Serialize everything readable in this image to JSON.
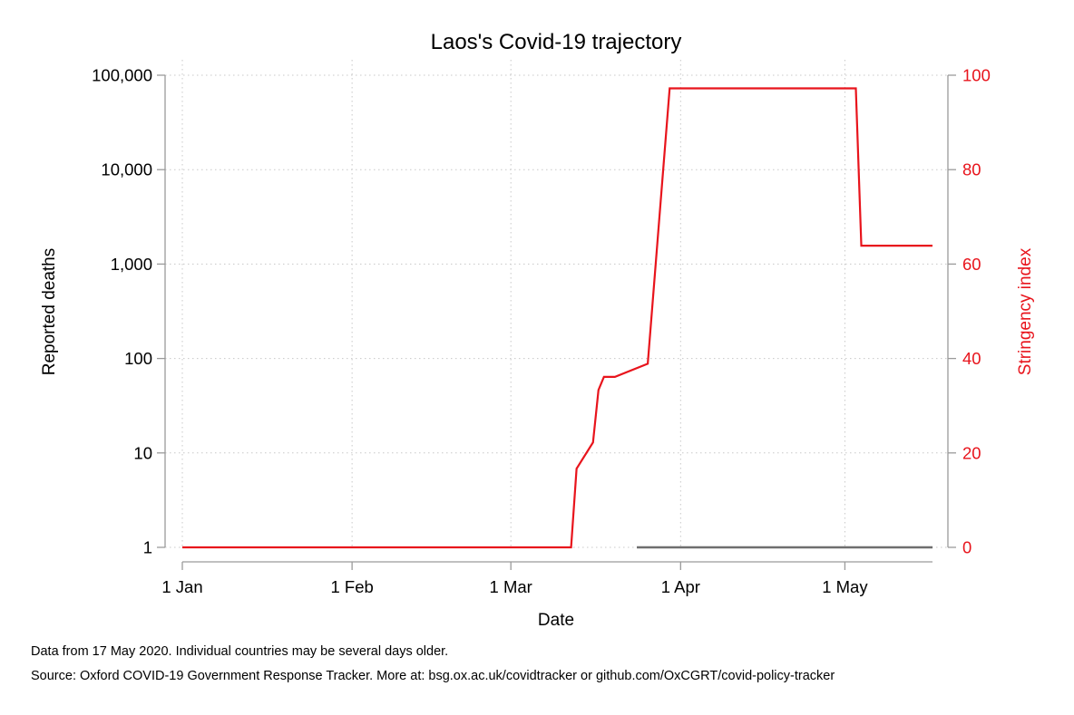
{
  "chart_data": {
    "type": "line",
    "title": "Laos's Covid-19 trajectory",
    "xlabel": "Date",
    "ylabel_left": "Reported deaths",
    "ylabel_right": "Stringency index",
    "x_axis": {
      "type": "date",
      "range": [
        "2020-01-01",
        "2020-05-17"
      ],
      "ticks": [
        {
          "date": "2020-01-01",
          "label": "1 Jan"
        },
        {
          "date": "2020-02-01",
          "label": "1 Feb"
        },
        {
          "date": "2020-03-01",
          "label": "1 Mar"
        },
        {
          "date": "2020-04-01",
          "label": "1 Apr"
        },
        {
          "date": "2020-05-01",
          "label": "1 May"
        }
      ]
    },
    "y_left": {
      "scale": "log",
      "range": [
        1,
        100000
      ],
      "ticks": [
        {
          "value": 1,
          "label": "1"
        },
        {
          "value": 10,
          "label": "10"
        },
        {
          "value": 100,
          "label": "100"
        },
        {
          "value": 1000,
          "label": "1,000"
        },
        {
          "value": 10000,
          "label": "10,000"
        },
        {
          "value": 100000,
          "label": "100,000"
        }
      ]
    },
    "y_right": {
      "scale": "linear",
      "range": [
        0,
        100
      ],
      "ticks": [
        {
          "value": 0,
          "label": "0"
        },
        {
          "value": 20,
          "label": "20"
        },
        {
          "value": 40,
          "label": "40"
        },
        {
          "value": 60,
          "label": "60"
        },
        {
          "value": 80,
          "label": "80"
        },
        {
          "value": 100,
          "label": "100"
        }
      ]
    },
    "grid": true,
    "series": [
      {
        "axis": "right",
        "color": "#e8141c",
        "style": "step",
        "points": [
          {
            "x": "2020-01-01",
            "y": 0
          },
          {
            "x": "2020-03-12",
            "y": 0
          },
          {
            "x": "2020-03-13",
            "y": 16.67
          },
          {
            "x": "2020-03-16",
            "y": 22.22
          },
          {
            "x": "2020-03-17",
            "y": 33.33
          },
          {
            "x": "2020-03-18",
            "y": 36.11
          },
          {
            "x": "2020-03-20",
            "y": 36.11
          },
          {
            "x": "2020-03-26",
            "y": 38.89
          },
          {
            "x": "2020-03-30",
            "y": 97.22
          },
          {
            "x": "2020-05-03",
            "y": 97.22
          },
          {
            "x": "2020-05-04",
            "y": 63.89
          },
          {
            "x": "2020-05-17",
            "y": 63.89
          }
        ]
      },
      {
        "axis": "left",
        "color": "#6e6e6e",
        "style": "line",
        "points": [
          {
            "x": "2020-03-24",
            "y": 1
          },
          {
            "x": "2020-05-17",
            "y": 1
          }
        ]
      }
    ]
  },
  "footnotes": {
    "line1": "Data from 17 May 2020. Individual countries may be several days older.",
    "line2": "Source: Oxford COVID-19 Government Response Tracker. More at: bsg.ox.ac.uk/covidtracker or github.com/OxCGRT/covid-policy-tracker"
  }
}
